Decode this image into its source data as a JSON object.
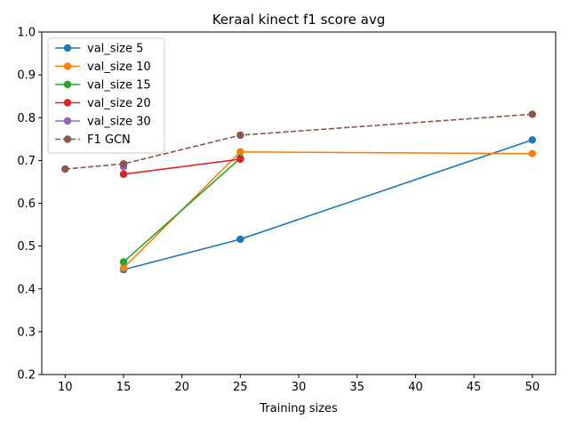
{
  "chart_data": {
    "type": "line",
    "title": "Keraal kinect f1 score avg",
    "xlabel": "Training sizes",
    "ylabel": "",
    "xlim": [
      8.0,
      52.0
    ],
    "ylim": [
      0.2,
      1.0
    ],
    "xticks": [
      10,
      15,
      20,
      25,
      30,
      35,
      40,
      45,
      50
    ],
    "yticks": [
      0.2,
      0.3,
      0.4,
      0.5,
      0.6,
      0.7,
      0.8,
      0.9,
      1.0
    ],
    "grid": false,
    "legend_position": "top-left",
    "series": [
      {
        "name": "val_size 5",
        "color": "#1f77b4",
        "style": "solid",
        "x": [
          15,
          25,
          50
        ],
        "y": [
          0.445,
          0.516,
          0.748
        ]
      },
      {
        "name": "val_size 10",
        "color": "#ff7f0e",
        "style": "solid",
        "x": [
          15,
          25,
          50
        ],
        "y": [
          0.449,
          0.72,
          0.716
        ]
      },
      {
        "name": "val_size 15",
        "color": "#2ca02c",
        "style": "solid",
        "x": [
          15,
          25
        ],
        "y": [
          0.463,
          0.705
        ]
      },
      {
        "name": "val_size 20",
        "color": "#d62728",
        "style": "solid",
        "x": [
          15,
          25
        ],
        "y": [
          0.668,
          0.703
        ]
      },
      {
        "name": "val_size 30",
        "color": "#9467bd",
        "style": "solid",
        "x": [
          15
        ],
        "y": [
          0.685
        ]
      },
      {
        "name": "F1 GCN",
        "color": "#8c564b",
        "style": "dashed",
        "x": [
          10,
          15,
          25,
          50
        ],
        "y": [
          0.68,
          0.692,
          0.759,
          0.808
        ]
      }
    ]
  }
}
